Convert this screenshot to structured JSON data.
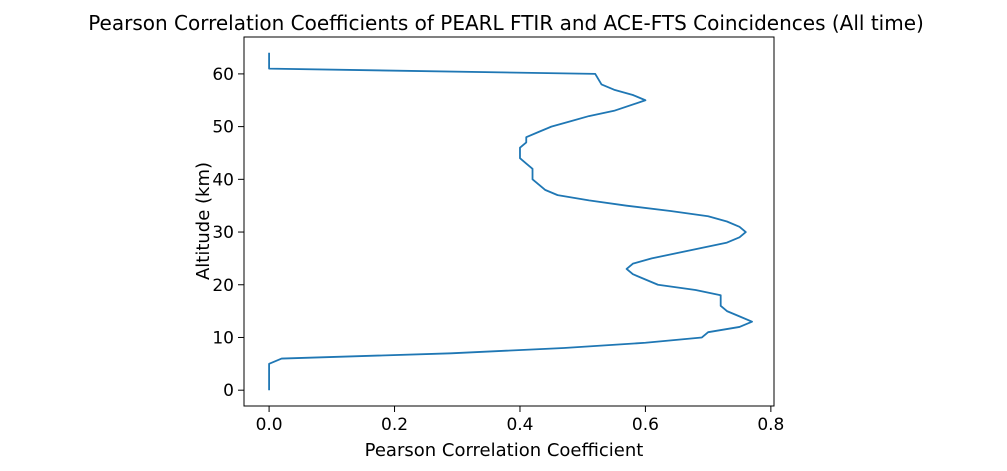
{
  "chart_data": {
    "type": "line",
    "title": "Pearson Correlation Coefficients of PEARL FTIR and ACE-FTS Coincidences (All time)",
    "xlabel": "Pearson Correlation Coefficient",
    "ylabel": "Altitude (km)",
    "xlim": [
      -0.04,
      0.805
    ],
    "ylim": [
      -3,
      67
    ],
    "xticks": [
      0.0,
      0.2,
      0.4,
      0.6,
      0.8
    ],
    "xtick_labels": [
      "0.0",
      "0.2",
      "0.4",
      "0.6",
      "0.8"
    ],
    "yticks": [
      0,
      10,
      20,
      30,
      40,
      50,
      60
    ],
    "ytick_labels": [
      "0",
      "10",
      "20",
      "30",
      "40",
      "50",
      "60"
    ],
    "grid": false,
    "line_color": "#1f77b4",
    "series": [
      {
        "x": [
          0.0,
          0.0,
          0.0,
          0.0,
          0.0,
          0.0,
          0.02,
          0.29,
          0.47,
          0.6,
          0.69,
          0.7,
          0.75,
          0.77,
          0.75,
          0.73,
          0.72,
          0.72,
          0.72,
          0.68,
          0.62,
          0.6,
          0.58,
          0.57,
          0.58,
          0.61,
          0.65,
          0.69,
          0.73,
          0.75,
          0.76,
          0.75,
          0.73,
          0.7,
          0.64,
          0.57,
          0.51,
          0.46,
          0.44,
          0.43,
          0.42,
          0.42,
          0.42,
          0.41,
          0.4,
          0.4,
          0.4,
          0.41,
          0.41,
          0.43,
          0.45,
          0.48,
          0.51,
          0.55,
          0.6,
          0.58,
          0.55,
          0.53,
          0.52,
          0.0,
          0.0,
          0.0,
          0.0
        ],
        "y": [
          0,
          1,
          2,
          3,
          4,
          5,
          6,
          7,
          8,
          9,
          10,
          11,
          12,
          13,
          14,
          15,
          16,
          17,
          18,
          19,
          20,
          21,
          22,
          23,
          24,
          25,
          26,
          27,
          28,
          29,
          30,
          31,
          32,
          33,
          34,
          35,
          36,
          37,
          38,
          39,
          40,
          41,
          42,
          43,
          44,
          45,
          46,
          47,
          48,
          49,
          50,
          51,
          52,
          53,
          55,
          56,
          57,
          58,
          60,
          61,
          62,
          63,
          64
        ]
      }
    ]
  }
}
